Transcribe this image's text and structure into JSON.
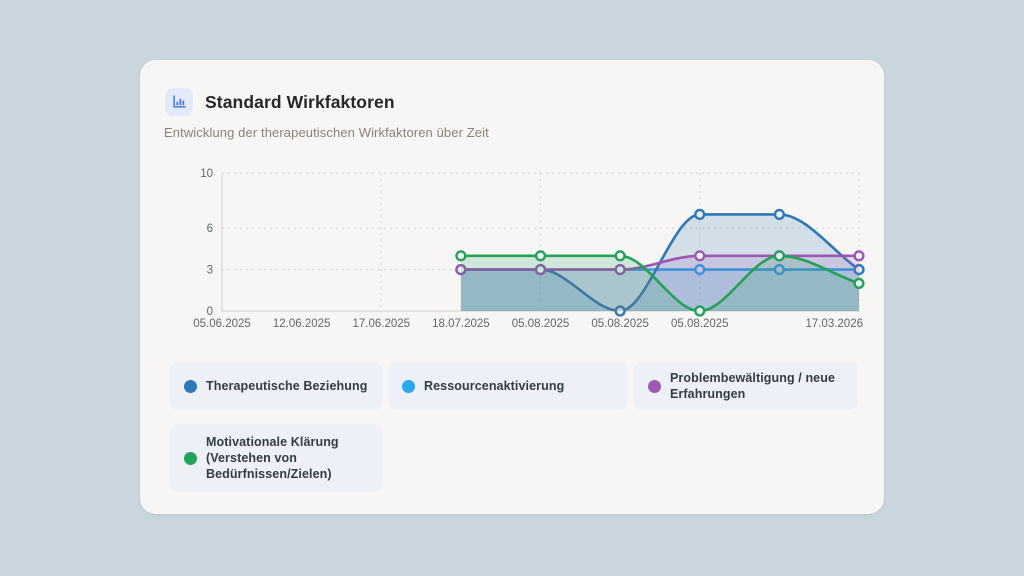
{
  "header": {
    "icon": "bar-chart-icon",
    "icon_color": "#4a79d2",
    "icon_bg": "#e3ebfb",
    "title": "Standard Wirkfaktoren",
    "subtitle": "Entwicklung der therapeutischen Wirkfaktoren über Zeit"
  },
  "chart_data": {
    "type": "line",
    "title": "Standard Wirkfaktoren",
    "x_tick_labels": [
      "05.06.2025",
      "12.06.2025",
      "17.06.2025",
      "18.07.2025",
      "05.08.2025",
      "05.08.2025",
      "05.08.2025",
      "17.03.2026"
    ],
    "x_tick_slots": [
      0,
      1,
      2,
      3,
      4,
      5,
      6,
      8
    ],
    "x_slot_count": 9,
    "data_start_slot": 3,
    "y_ticks": [
      0,
      3,
      6,
      10
    ],
    "ylim": [
      0,
      10
    ],
    "grid": {
      "h_dashed_at": [
        3,
        6,
        10
      ],
      "v_dashed_slots": [
        2,
        4,
        6,
        8
      ]
    },
    "area_fill_opacity": 0.18,
    "draw_order": [
      1,
      0,
      2,
      3
    ],
    "legend_position": "bottom",
    "series": [
      {
        "name": "Therapeutische Beziehung",
        "color": "#2e78b5",
        "values": [
          3,
          3,
          0,
          7,
          7,
          3
        ]
      },
      {
        "name": "Ressourcenaktivierung",
        "color": "#2aa7ea",
        "values": [
          3,
          3,
          3,
          3,
          3,
          3
        ]
      },
      {
        "name": "Problembewältigung / neue Erfahrungen",
        "color": "#9a56b0",
        "values": [
          3,
          3,
          3,
          4,
          4,
          4
        ]
      },
      {
        "name": "Motivationale Klärung (Verstehen von Bedürfnissen/Zielen)",
        "color": "#24a158",
        "values": [
          4,
          4,
          4,
          0,
          4,
          2
        ]
      }
    ]
  },
  "legend": {
    "items": [
      {
        "label": "Therapeutische Beziehung",
        "color": "#2b79b8"
      },
      {
        "label": "Ressourcenaktivierung",
        "color": "#29a8ec"
      },
      {
        "label": "Problembewältigung / neue Erfahrungen",
        "color": "#9f58b4"
      },
      {
        "label": "Motivationale Klärung (Verstehen von Bedürfnissen/Zielen)",
        "color": "#23a457"
      }
    ]
  },
  "colors": {
    "page_bg": "#c9d6de",
    "card_bg": "#f7f6f4",
    "legend_box_bg": "#edf1f7",
    "grid_line": "#d4d1cc",
    "axis_line": "#dcd9d4",
    "tick_text": "#62666b",
    "marker_fill": "#eef3f9"
  }
}
